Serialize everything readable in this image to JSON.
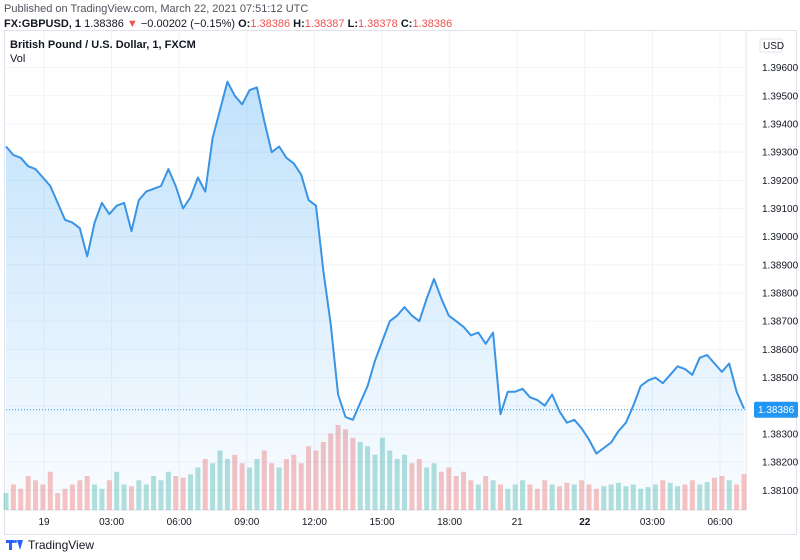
{
  "header": {
    "published": "Published on TradingView.com, March 22, 2021 07:51:12 UTC",
    "symbol": "FX:GBPUSD, 1",
    "last": "1.38386",
    "change_arrow": "▼",
    "change": "−0.00202 (−0.15%)",
    "o_label": "O:",
    "o_value": "1.38386",
    "h_label": "H:",
    "h_value": "1.38387",
    "l_label": "L:",
    "l_value": "1.38378",
    "c_label": "C:",
    "c_value": "1.38386"
  },
  "legend": {
    "title": "British Pound / U.S. Dollar, 1, FXCM",
    "vol_label": "Vol"
  },
  "footer": {
    "brand": "TradingView"
  },
  "colors": {
    "line": "#3a94e4",
    "up_vol": "#26a69a",
    "down_vol": "#ef5350",
    "price_tag": "#2196f3"
  },
  "chart_data": {
    "type": "area",
    "currency_label": "USD",
    "last_price_label": "1.38386",
    "y_ticks": [
      "1.39600",
      "1.39500",
      "1.39400",
      "1.39300",
      "1.39200",
      "1.39100",
      "1.39000",
      "1.38900",
      "1.38800",
      "1.38700",
      "1.38600",
      "1.38500",
      "1.38400",
      "1.38300",
      "1.38200",
      "1.38100"
    ],
    "ylim": [
      1.3803,
      1.3973
    ],
    "x_ticks": [
      "19",
      "03:00",
      "06:00",
      "09:00",
      "12:00",
      "15:00",
      "18:00",
      "21",
      "22",
      "03:00",
      "06:00"
    ],
    "bold_x_ticks": [
      "22"
    ],
    "xlim": [
      0,
      100
    ],
    "x": [
      0,
      1,
      2,
      3,
      4,
      5,
      6,
      7,
      8,
      9,
      10,
      11,
      12,
      13,
      14,
      15,
      16,
      17,
      18,
      19,
      20,
      21,
      22,
      23,
      24,
      25,
      26,
      27,
      28,
      29,
      30,
      31,
      32,
      33,
      34,
      35,
      36,
      37,
      38,
      39,
      40,
      41,
      42,
      43,
      44,
      45,
      46,
      47,
      48,
      49,
      50,
      51,
      52,
      53,
      54,
      55,
      56,
      57,
      58,
      59,
      60,
      61,
      62,
      63,
      64,
      65,
      66,
      67,
      68,
      69,
      70,
      71,
      72,
      73,
      74,
      75,
      76,
      77,
      78,
      79,
      80,
      81,
      82,
      83,
      84,
      85,
      86,
      87,
      88,
      89,
      90,
      91,
      92,
      93,
      94,
      95,
      96,
      97,
      98,
      99,
      100
    ],
    "y": [
      1.3932,
      1.3929,
      1.3928,
      1.3925,
      1.3924,
      1.3921,
      1.3918,
      1.3912,
      1.3906,
      1.3905,
      1.3903,
      1.3893,
      1.3905,
      1.3912,
      1.3908,
      1.3911,
      1.3912,
      1.3902,
      1.3913,
      1.3916,
      1.3917,
      1.3918,
      1.3924,
      1.3918,
      1.391,
      1.3914,
      1.3921,
      1.3916,
      1.3935,
      1.3945,
      1.3955,
      1.395,
      1.3947,
      1.3952,
      1.3953,
      1.3941,
      1.393,
      1.3932,
      1.3928,
      1.3926,
      1.3922,
      1.3913,
      1.3911,
      1.3888,
      1.3869,
      1.3844,
      1.3836,
      1.3835,
      1.3841,
      1.3847,
      1.3856,
      1.3863,
      1.387,
      1.3872,
      1.3875,
      1.3872,
      1.387,
      1.3878,
      1.3885,
      1.3878,
      1.3872,
      1.387,
      1.3868,
      1.3865,
      1.3866,
      1.3862,
      1.3866,
      1.3837,
      1.3845,
      1.3845,
      1.3846,
      1.3843,
      1.3842,
      1.384,
      1.3844,
      1.3838,
      1.3834,
      1.3835,
      1.3832,
      1.3828,
      1.3823,
      1.3825,
      1.3827,
      1.3831,
      1.3834,
      1.384,
      1.3847,
      1.3849,
      1.385,
      1.3848,
      1.3851,
      1.3854,
      1.3853,
      1.3851,
      1.3857,
      1.3858,
      1.3855,
      1.3852,
      1.3855,
      1.3845,
      1.3839
    ],
    "volume": [
      0.2,
      0.3,
      0.25,
      0.4,
      0.35,
      0.3,
      0.45,
      0.2,
      0.25,
      0.3,
      0.35,
      0.4,
      0.3,
      0.25,
      0.35,
      0.45,
      0.3,
      0.28,
      0.35,
      0.3,
      0.4,
      0.35,
      0.45,
      0.4,
      0.38,
      0.42,
      0.5,
      0.6,
      0.55,
      0.7,
      0.6,
      0.65,
      0.55,
      0.5,
      0.6,
      0.7,
      0.55,
      0.5,
      0.6,
      0.65,
      0.55,
      0.75,
      0.7,
      0.8,
      0.9,
      1.0,
      0.95,
      0.85,
      0.8,
      0.75,
      0.65,
      0.85,
      0.7,
      0.6,
      0.65,
      0.55,
      0.6,
      0.5,
      0.55,
      0.45,
      0.5,
      0.4,
      0.45,
      0.35,
      0.3,
      0.4,
      0.35,
      0.3,
      0.25,
      0.3,
      0.35,
      0.3,
      0.25,
      0.35,
      0.3,
      0.28,
      0.32,
      0.3,
      0.35,
      0.3,
      0.25,
      0.28,
      0.3,
      0.32,
      0.28,
      0.3,
      0.25,
      0.27,
      0.3,
      0.35,
      0.32,
      0.28,
      0.3,
      0.35,
      0.3,
      0.33,
      0.38,
      0.4,
      0.35,
      0.3,
      0.42
    ],
    "grid": true
  }
}
